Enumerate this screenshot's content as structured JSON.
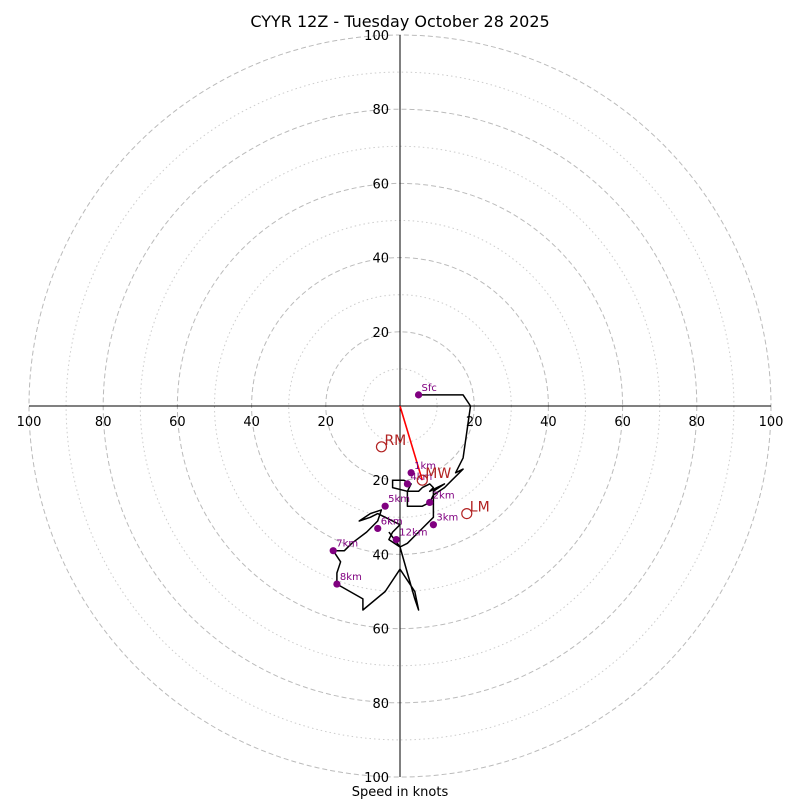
{
  "chart_data": {
    "type": "hodograph",
    "title": "CYYR 12Z - Tuesday October 28 2025",
    "xlabel": "Speed in knots",
    "units": "knots",
    "range": [
      -100,
      100
    ],
    "ring_major": [
      20,
      40,
      60,
      80,
      100
    ],
    "ring_minor": [
      10,
      30,
      50,
      70,
      90
    ],
    "tick_values": [
      100,
      80,
      60,
      40,
      20
    ],
    "colors": {
      "trace": "#000000",
      "points": "#800080",
      "motion": "#b22222",
      "shear_vector": "#ff0000",
      "grid": "#bbbbbb",
      "grid_minor": "#cccccc"
    },
    "trace": [
      [
        5,
        3
      ],
      [
        17,
        3
      ],
      [
        19,
        0
      ],
      [
        18,
        -7
      ],
      [
        17,
        -14
      ],
      [
        15,
        -18
      ],
      [
        17,
        -17
      ],
      [
        14,
        -20
      ],
      [
        12,
        -22
      ],
      [
        9,
        -24
      ],
      [
        8,
        -26
      ],
      [
        6,
        -27
      ],
      [
        2,
        -27
      ],
      [
        2,
        -23
      ],
      [
        3,
        -21
      ],
      [
        1,
        -20
      ],
      [
        -2,
        -20
      ],
      [
        -2,
        -22
      ],
      [
        2,
        -23
      ],
      [
        5,
        -23
      ],
      [
        6,
        -22
      ],
      [
        8,
        -21
      ],
      [
        9,
        -22
      ],
      [
        8,
        -23
      ],
      [
        10,
        -22
      ],
      [
        12,
        -21
      ],
      [
        9,
        -23
      ],
      [
        9,
        -27
      ],
      [
        9,
        -30
      ],
      [
        6,
        -33
      ],
      [
        4,
        -35
      ],
      [
        2,
        -37
      ],
      [
        0,
        -38
      ],
      [
        -3,
        -36
      ],
      [
        -2,
        -34
      ],
      [
        0,
        -32
      ],
      [
        -2,
        -31
      ],
      [
        -4,
        -30
      ],
      [
        -6,
        -29
      ],
      [
        -8,
        -30
      ],
      [
        -11,
        -31
      ],
      [
        -8,
        -29
      ],
      [
        -5,
        -28
      ],
      [
        -6,
        -31
      ],
      [
        -9,
        -34
      ],
      [
        -13,
        -37
      ],
      [
        -15,
        -39
      ],
      [
        -18,
        -39
      ],
      [
        -16,
        -42
      ],
      [
        -17,
        -45
      ],
      [
        -17,
        -48
      ],
      [
        -10,
        -52
      ],
      [
        -10,
        -55
      ],
      [
        -4,
        -50
      ],
      [
        0,
        -44
      ],
      [
        4,
        -50
      ],
      [
        5,
        -55
      ],
      [
        4,
        -52
      ],
      [
        2,
        -45
      ],
      [
        0,
        -38
      ],
      [
        -3,
        -34
      ]
    ],
    "levels": [
      {
        "label": "Sfc",
        "u": 5,
        "v": 3
      },
      {
        "label": "1km",
        "u": 3,
        "v": -18
      },
      {
        "label": "2km",
        "u": 8,
        "v": -26
      },
      {
        "label": "3km",
        "u": 9,
        "v": -32
      },
      {
        "label": "4km",
        "u": 2,
        "v": -21
      },
      {
        "label": "5km",
        "u": -4,
        "v": -27
      },
      {
        "label": "6km",
        "u": -6,
        "v": -33
      },
      {
        "label": "7km",
        "u": -18,
        "v": -39
      },
      {
        "label": "8km",
        "u": -17,
        "v": -48
      },
      {
        "label": "12km",
        "u": -1,
        "v": -36
      }
    ],
    "storm_motion": [
      {
        "label": "RM",
        "u": -5,
        "v": -11
      },
      {
        "label": "LM",
        "u": 18,
        "v": -29
      },
      {
        "label": "MW",
        "u": 6,
        "v": -20
      }
    ],
    "shear_vector": {
      "from": [
        0,
        0
      ],
      "to": [
        6,
        -20
      ]
    }
  }
}
